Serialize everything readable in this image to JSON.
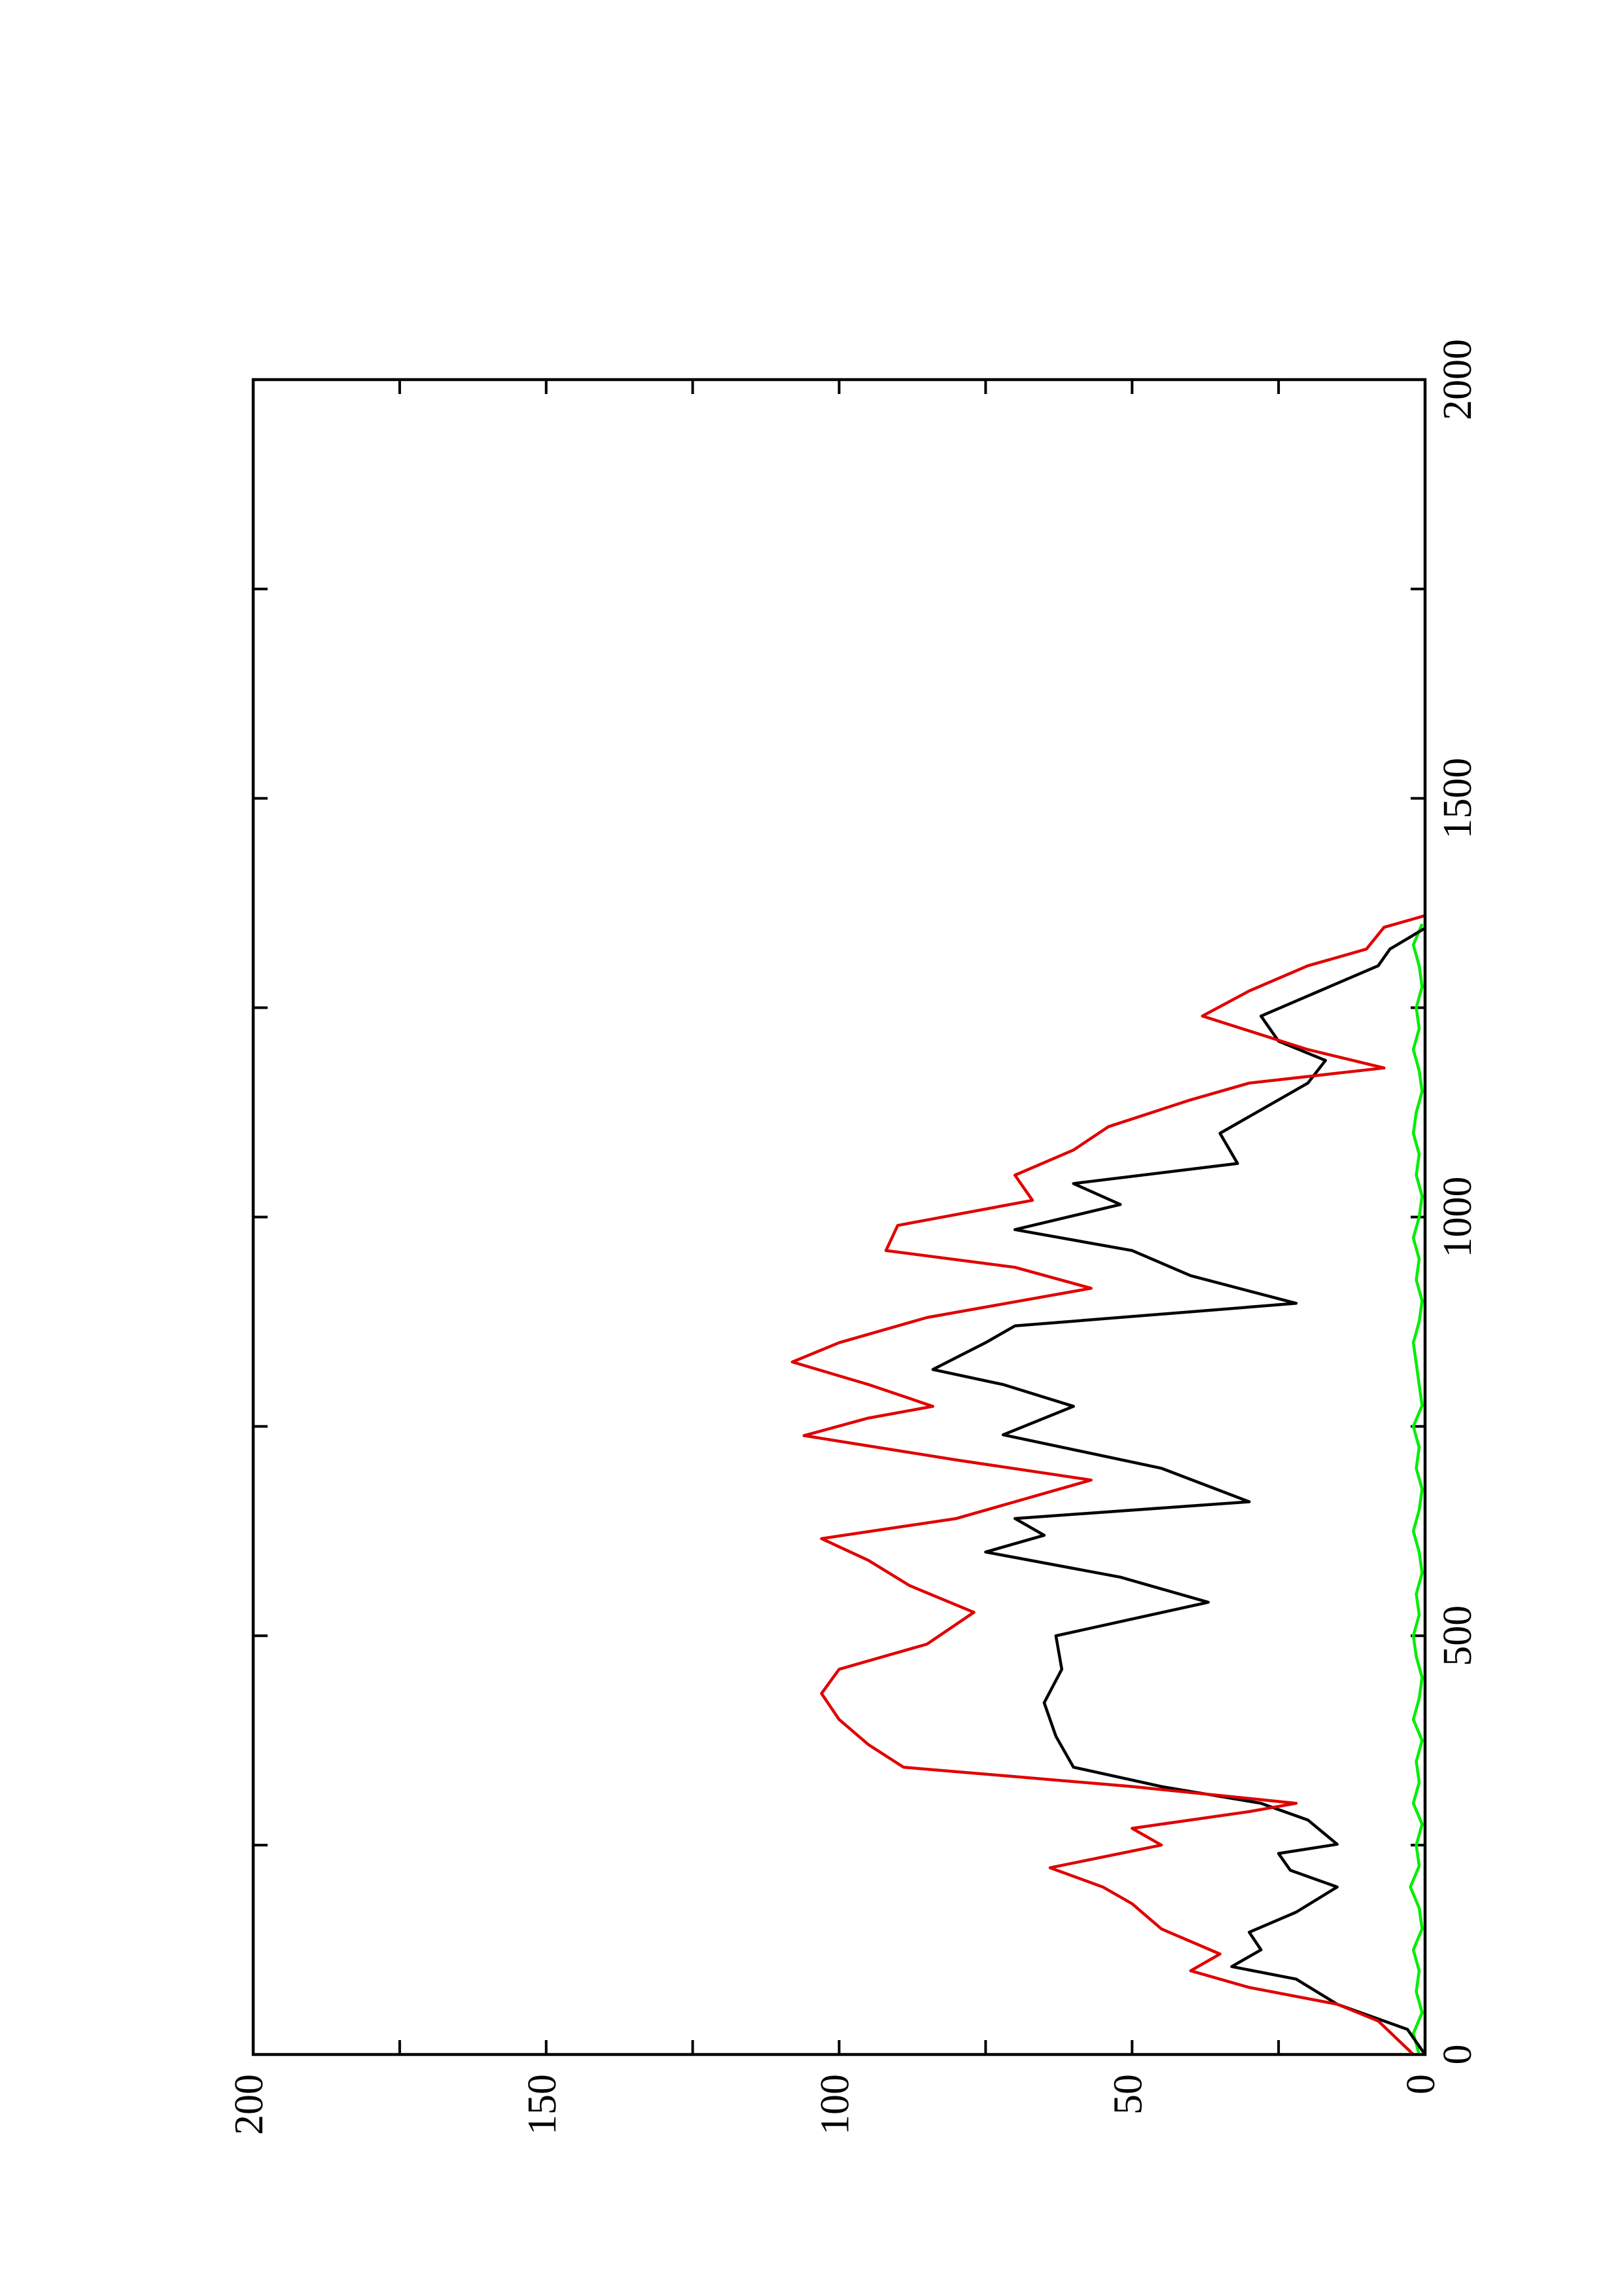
{
  "chart_data": {
    "type": "line",
    "xlim": [
      0,
      2000
    ],
    "xticks": [
      0,
      500,
      1000,
      1500,
      2000
    ],
    "x_minor_ticks": [
      250,
      750,
      1250,
      1750
    ],
    "ylim": [
      0,
      200
    ],
    "yticks": [
      0,
      50,
      100,
      150,
      200
    ],
    "y_minor_ticks": [
      25,
      75,
      125,
      175
    ],
    "rotated": true,
    "series": [
      {
        "color": "#00ee00",
        "x": [
          0,
          25,
          50,
          75,
          100,
          125,
          150,
          175,
          200,
          225,
          250,
          275,
          300,
          325,
          350,
          375,
          400,
          425,
          450,
          475,
          500,
          525,
          550,
          575,
          600,
          625,
          650,
          675,
          700,
          725,
          750,
          775,
          800,
          825,
          850,
          875,
          900,
          925,
          950,
          975,
          1000,
          1025,
          1050,
          1075,
          1100,
          1125,
          1150,
          1175,
          1200,
          1225,
          1250,
          1275,
          1300,
          1325,
          1350
        ],
        "values": [
          1,
          2,
          0.5,
          1.5,
          1,
          2,
          0.5,
          1,
          2.5,
          1,
          1.5,
          0.5,
          2,
          1,
          1.5,
          0.5,
          2,
          1,
          0.5,
          1.5,
          2,
          1,
          1.5,
          0.5,
          1,
          2,
          1,
          0.5,
          1.5,
          1,
          2,
          0.5,
          1,
          1.5,
          2,
          1,
          0.5,
          1.5,
          1,
          2,
          1,
          0.5,
          1.5,
          1,
          2,
          1.5,
          0.5,
          1,
          2,
          1,
          1.5,
          0.5,
          1,
          2,
          0.5
        ]
      },
      {
        "color": "#000000",
        "x": [
          0,
          30,
          60,
          90,
          105,
          125,
          146,
          170,
          200,
          220,
          240,
          251,
          280,
          300,
          320,
          343,
          380,
          420,
          460,
          500,
          540,
          570,
          600,
          620,
          640,
          660,
          700,
          740,
          774,
          800,
          818,
          850,
          870,
          897,
          930,
          960,
          985,
          1015,
          1040,
          1064,
          1100,
          1140,
          1160,
          1187,
          1210,
          1240,
          1270,
          1300,
          1320,
          1345
        ],
        "values": [
          0,
          3,
          15,
          22,
          33,
          28,
          30,
          22,
          15,
          23,
          25,
          15,
          20,
          28,
          45,
          60,
          63,
          65,
          62,
          63,
          37,
          52,
          75,
          65,
          70,
          30,
          45,
          72,
          60,
          72,
          84,
          75,
          70,
          22,
          40,
          50,
          70,
          52,
          60,
          32,
          35,
          25,
          20,
          17,
          25,
          28,
          18,
          8,
          6,
          0
        ]
      },
      {
        "color": "#e00000",
        "x": [
          0,
          20,
          40,
          60,
          80,
          100,
          120,
          150,
          180,
          200,
          223,
          250,
          270,
          290,
          300,
          320,
          343,
          370,
          400,
          431,
          460,
          490,
          528,
          560,
          590,
          616,
          640,
          660,
          686,
          710,
          739,
          760,
          774,
          800,
          827,
          850,
          880,
          915,
          940,
          960,
          990,
          1020,
          1050,
          1080,
          1108,
          1140,
          1160,
          1178,
          1200,
          1240,
          1270,
          1300,
          1320,
          1346,
          1360
        ],
        "values": [
          2,
          5,
          8,
          15,
          30,
          40,
          35,
          45,
          50,
          55,
          64,
          45,
          50,
          30,
          22,
          50,
          89,
          95,
          100,
          103,
          100,
          85,
          77,
          88,
          95,
          103,
          80,
          70,
          57,
          80,
          106,
          95,
          84,
          95,
          108,
          100,
          85,
          57,
          70,
          92,
          90,
          67,
          70,
          60,
          54,
          40,
          30,
          7,
          20,
          38,
          30,
          20,
          10,
          7,
          0
        ]
      }
    ]
  }
}
